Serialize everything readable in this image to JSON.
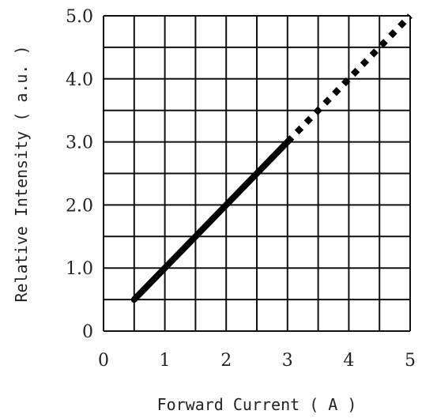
{
  "chart_data": {
    "type": "line",
    "xlabel": "Forward Current ( A )",
    "ylabel": "Relative Intensity ( a.u. )",
    "xlim": [
      0,
      5
    ],
    "ylim": [
      0,
      5
    ],
    "x_ticks": [
      "0",
      "1",
      "2",
      "3",
      "4",
      "5"
    ],
    "y_ticks": [
      "0",
      "1.0",
      "2.0",
      "3.0",
      "4.0",
      "5.0"
    ],
    "grid": true,
    "series": [
      {
        "style": "solid",
        "color": "#000000",
        "x": [
          0.5,
          3.0
        ],
        "y": [
          0.5,
          3.0
        ]
      },
      {
        "style": "dotted",
        "color": "#000000",
        "x": [
          3.0,
          5.0
        ],
        "y": [
          3.0,
          5.0
        ]
      }
    ]
  }
}
